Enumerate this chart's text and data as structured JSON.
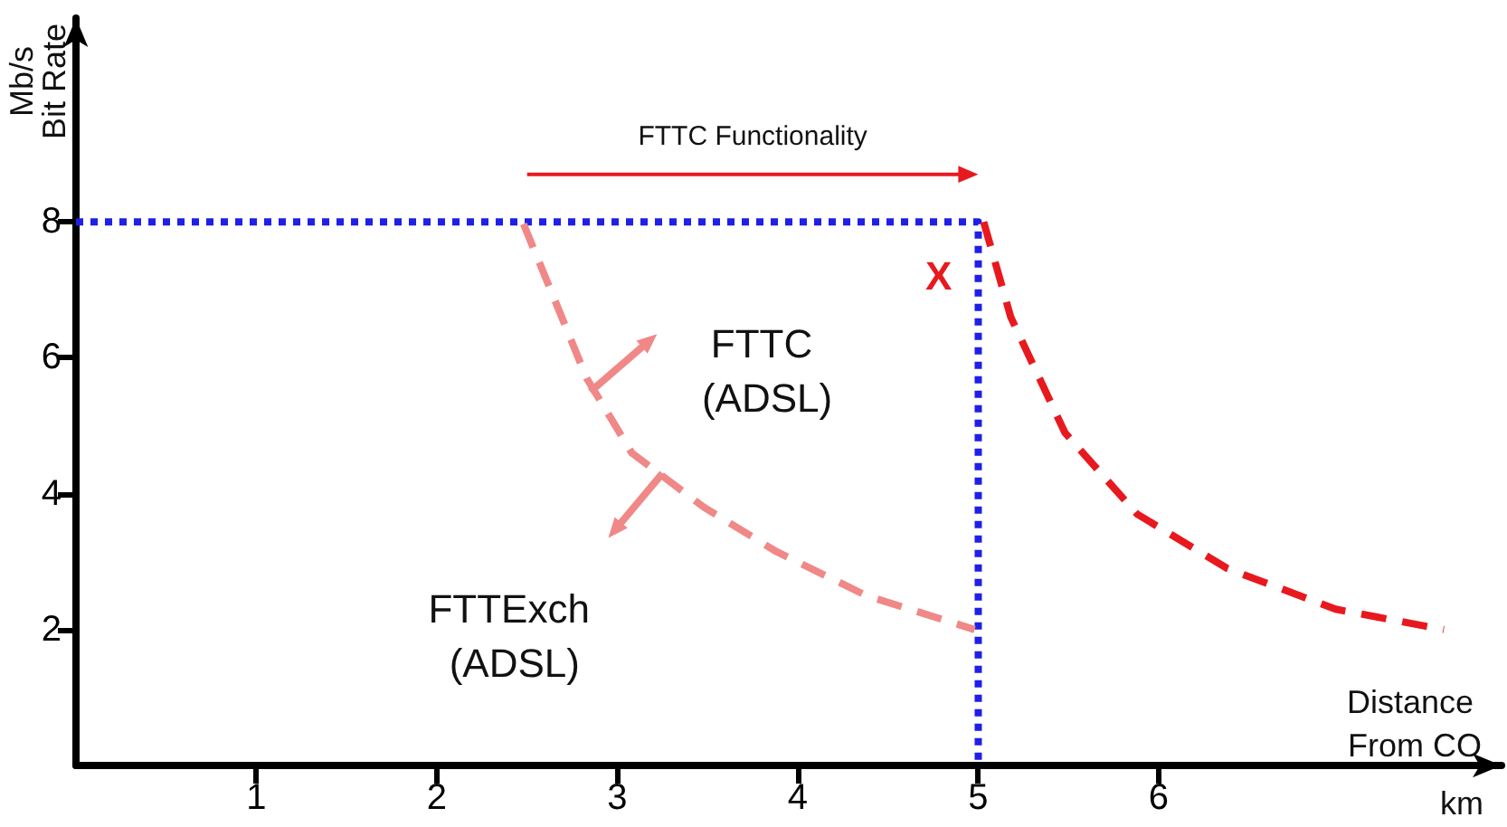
{
  "chart_data": {
    "type": "line",
    "xlabel": "Distance From CO",
    "ylabel": "Bit Rate",
    "annotations": [
      "Mb/s",
      "km",
      "FTTC Functionality",
      "X",
      "FTTC (ADSL)",
      "FTTExch (ADSL)"
    ],
    "xlim": [
      0,
      7.9
    ],
    "ylim": [
      0,
      11
    ],
    "xticks": [
      1,
      2,
      3,
      4,
      5,
      6
    ],
    "yticks": [
      2,
      4,
      6,
      8
    ],
    "grid": false,
    "marker": "none",
    "series": [
      {
        "color": "#1f1fe6",
        "line_style": "dotted",
        "x": [
          0,
          5,
          5
        ],
        "values": [
          8,
          8,
          0
        ]
      },
      {
        "color": "#f08888",
        "line_style": "dashed",
        "x": [
          2.48,
          2.63,
          2.83,
          3.08,
          3.48,
          3.88,
          4.38,
          4.98
        ],
        "values": [
          7.97,
          7.0,
          5.7,
          4.6,
          3.8,
          3.15,
          2.5,
          2.0
        ]
      },
      {
        "color": "#e8191e",
        "line_style": "dashed",
        "x": [
          5.03,
          5.18,
          5.48,
          5.88,
          6.38,
          6.98,
          7.58
        ],
        "values": [
          8,
          6.6,
          4.9,
          3.7,
          2.9,
          2.3,
          2.0
        ]
      }
    ]
  }
}
